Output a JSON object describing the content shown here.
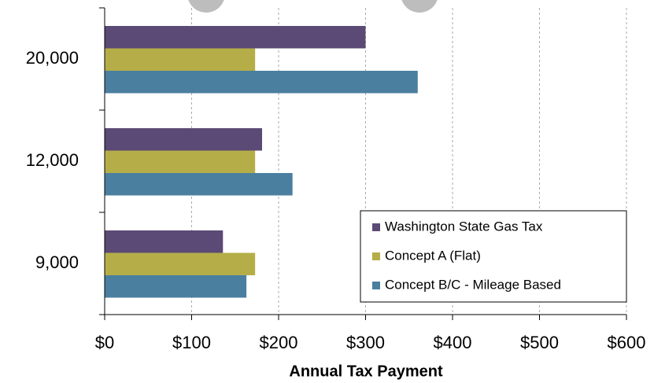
{
  "chart_data": {
    "type": "hbar",
    "x_label": "Annual Tax Payment",
    "categories": [
      "20,000",
      "12,000",
      "9,000"
    ],
    "series": [
      {
        "name": "Washington State Gas Tax",
        "color": "#5b4a75",
        "values": [
          300,
          181,
          136
        ]
      },
      {
        "name": "Concept A (Flat)",
        "color": "#b5ae48",
        "values": [
          173,
          173,
          173
        ]
      },
      {
        "name": "Concept B/C - Mileage Based",
        "color": "#4a7fa0",
        "values": [
          360,
          216,
          163
        ]
      }
    ],
    "xlim": [
      0,
      600
    ],
    "xticks": [
      {
        "value": 0,
        "label": "$0"
      },
      {
        "value": 100,
        "label": "$100"
      },
      {
        "value": 200,
        "label": "$200"
      },
      {
        "value": 300,
        "label": "$300"
      },
      {
        "value": 400,
        "label": "$400"
      },
      {
        "value": 500,
        "label": "$500"
      },
      {
        "value": 600,
        "label": "$600"
      }
    ],
    "grid": true,
    "legend": "lower-right"
  }
}
